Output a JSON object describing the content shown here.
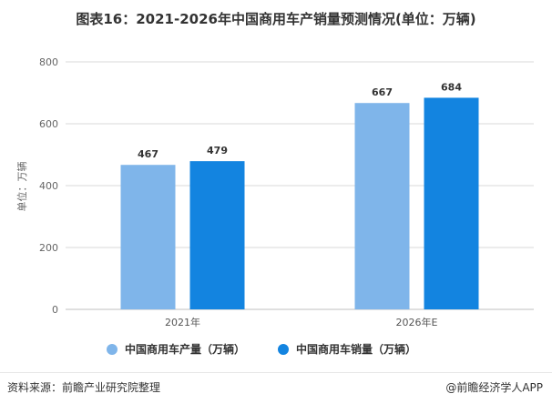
{
  "header": {
    "title": "图表16：2021-2026年中国商用车产销量预测情况(单位：万辆)"
  },
  "footer": {
    "source": "资料来源：前瞻产业研究院整理",
    "brand": "@前瞻经济学人APP"
  },
  "colors": {
    "production": "#7fb5ea",
    "sales": "#1384e0",
    "grid": "#d9d9d9",
    "axis": "#bfbfbf"
  },
  "chart_data": {
    "type": "bar",
    "title": "图表16：2021-2026年中国商用车产销量预测情况(单位：万辆)",
    "categories": [
      "2021年",
      "2026年E"
    ],
    "series": [
      {
        "name": "中国商用车产量（万辆）",
        "values": [
          467,
          667
        ]
      },
      {
        "name": "中国商用车销量（万辆）",
        "values": [
          479,
          684
        ]
      }
    ],
    "ylabel": "单位：万辆",
    "xlabel": "",
    "ylim": [
      0,
      800
    ],
    "yticks": [
      0,
      200,
      400,
      600,
      800
    ],
    "grid": true,
    "legend": "bottom"
  }
}
